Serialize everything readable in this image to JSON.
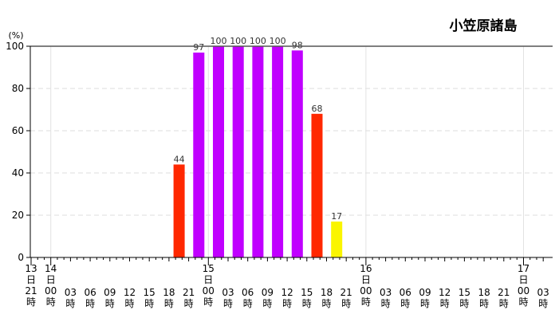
{
  "chart_data": {
    "type": "bar",
    "title": "小笠原諸島",
    "unit_label": "(%)",
    "ylim": [
      0,
      100
    ],
    "yticks": [
      0,
      20,
      40,
      60,
      80,
      100
    ],
    "grid": true,
    "colors": {
      "purple": "#c000ff",
      "red": "#ff2800",
      "yellow": "#faf500"
    },
    "slots": [
      {
        "day": "13",
        "hour": "21"
      },
      {
        "day": "14",
        "hour": "00"
      },
      {
        "hour": "03"
      },
      {
        "hour": "06"
      },
      {
        "hour": "09"
      },
      {
        "hour": "12"
      },
      {
        "hour": "15"
      },
      {
        "hour": "18"
      },
      {
        "hour": "21"
      },
      {
        "day": "15",
        "hour": "00"
      },
      {
        "hour": "03"
      },
      {
        "hour": "06"
      },
      {
        "hour": "09"
      },
      {
        "hour": "12"
      },
      {
        "hour": "15"
      },
      {
        "hour": "18"
      },
      {
        "hour": "21"
      },
      {
        "day": "16",
        "hour": "00"
      },
      {
        "hour": "03"
      },
      {
        "hour": "06"
      },
      {
        "hour": "09"
      },
      {
        "hour": "12"
      },
      {
        "hour": "15"
      },
      {
        "hour": "18"
      },
      {
        "hour": "21"
      },
      {
        "day": "17",
        "hour": "00"
      },
      {
        "hour": "03"
      }
    ],
    "day_suffix": "日",
    "hour_suffix": "時",
    "bars": [
      {
        "slot": 8,
        "value": 44,
        "label": "44",
        "color": "#ff2800"
      },
      {
        "slot": 9,
        "value": 97,
        "label": "97",
        "color": "#c000ff"
      },
      {
        "slot": 10,
        "value": 100,
        "label": "100",
        "color": "#c000ff"
      },
      {
        "slot": 11,
        "value": 100,
        "label": "100",
        "color": "#c000ff"
      },
      {
        "slot": 12,
        "value": 100,
        "label": "100",
        "color": "#c000ff"
      },
      {
        "slot": 13,
        "value": 100,
        "label": "100",
        "color": "#c000ff"
      },
      {
        "slot": 14,
        "value": 98,
        "label": "98",
        "color": "#c000ff"
      },
      {
        "slot": 15,
        "value": 68,
        "label": "68",
        "color": "#ff2800"
      },
      {
        "slot": 16,
        "value": 17,
        "label": "17",
        "color": "#faf500"
      }
    ]
  }
}
